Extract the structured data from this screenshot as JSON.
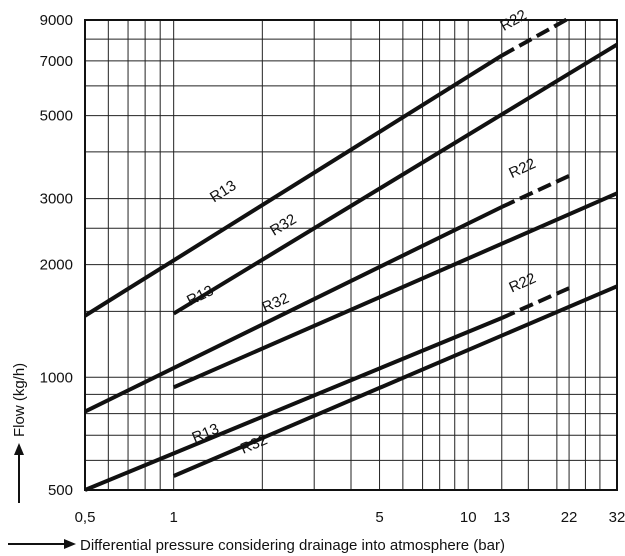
{
  "chart_data": {
    "type": "line",
    "title": "",
    "xlabel": "Differential pressure considering drainage into atmosphere (bar)",
    "ylabel": "Flow (kg/h)",
    "x_scale": "log",
    "y_scale": "log",
    "xlim": [
      0.5,
      32
    ],
    "ylim": [
      500,
      9000
    ],
    "grid": true,
    "x_tick_labels": [
      {
        "value": 0.5,
        "label": "0,5"
      },
      {
        "value": 1,
        "label": "1"
      },
      {
        "value": 5,
        "label": "5"
      },
      {
        "value": 10,
        "label": "10"
      },
      {
        "value": 13,
        "label": "13"
      },
      {
        "value": 22,
        "label": "22"
      },
      {
        "value": 32,
        "label": "32"
      }
    ],
    "y_tick_labels": [
      {
        "value": 500,
        "label": "500"
      },
      {
        "value": 1000,
        "label": "1000"
      },
      {
        "value": 2000,
        "label": "2000"
      },
      {
        "value": 3000,
        "label": "3000"
      },
      {
        "value": 5000,
        "label": "5000"
      },
      {
        "value": 7000,
        "label": "7000"
      },
      {
        "value": 9000,
        "label": "9000"
      }
    ],
    "x_gridlines": [
      0.5,
      0.6,
      0.7,
      0.8,
      0.9,
      1,
      2,
      3,
      4,
      5,
      6,
      7,
      8,
      9,
      10,
      13,
      16,
      20,
      22,
      25,
      28,
      32
    ],
    "y_gridlines": [
      500,
      600,
      700,
      800,
      900,
      1000,
      1500,
      2000,
      2500,
      3000,
      4000,
      5000,
      6000,
      7000,
      8000,
      9000
    ],
    "series": [
      {
        "name": "R13",
        "group": "upper",
        "style": "solid",
        "x": [
          0.5,
          13
        ],
        "y": [
          1460,
          7230
        ],
        "label_at": [
          1.5,
          3060
        ]
      },
      {
        "name": "R22",
        "group": "upper",
        "style": "dashed",
        "x": [
          13,
          22
        ],
        "y": [
          7230,
          9100
        ],
        "label_at": [
          14.5,
          8750
        ]
      },
      {
        "name": "R32",
        "group": "upper",
        "style": "solid",
        "x": [
          1,
          32
        ],
        "y": [
          1480,
          7740
        ],
        "label_at": [
          2.4,
          2490
        ]
      },
      {
        "name": "R13",
        "group": "middle",
        "style": "solid",
        "x": [
          0.5,
          13
        ],
        "y": [
          810,
          2850
        ],
        "label_at": [
          1.25,
          1610
        ]
      },
      {
        "name": "R22",
        "group": "middle",
        "style": "dashed",
        "x": [
          13,
          22
        ],
        "y": [
          2850,
          3450
        ],
        "label_at": [
          15.5,
          3520
        ]
      },
      {
        "name": "R32",
        "group": "middle",
        "style": "solid",
        "x": [
          1,
          32
        ],
        "y": [
          940,
          3100
        ],
        "label_at": [
          2.25,
          1540
        ]
      },
      {
        "name": "R13",
        "group": "lower",
        "style": "solid",
        "x": [
          0.5,
          13
        ],
        "y": [
          500,
          1440
        ],
        "label_at": [
          1.3,
          690
        ]
      },
      {
        "name": "R22",
        "group": "lower",
        "style": "dashed",
        "x": [
          13,
          22
        ],
        "y": [
          1440,
          1730
        ],
        "label_at": [
          15.5,
          1740
        ]
      },
      {
        "name": "R32",
        "group": "lower",
        "style": "solid",
        "x": [
          1,
          32
        ],
        "y": [
          545,
          1750
        ],
        "label_at": [
          1.9,
          645
        ]
      }
    ]
  }
}
